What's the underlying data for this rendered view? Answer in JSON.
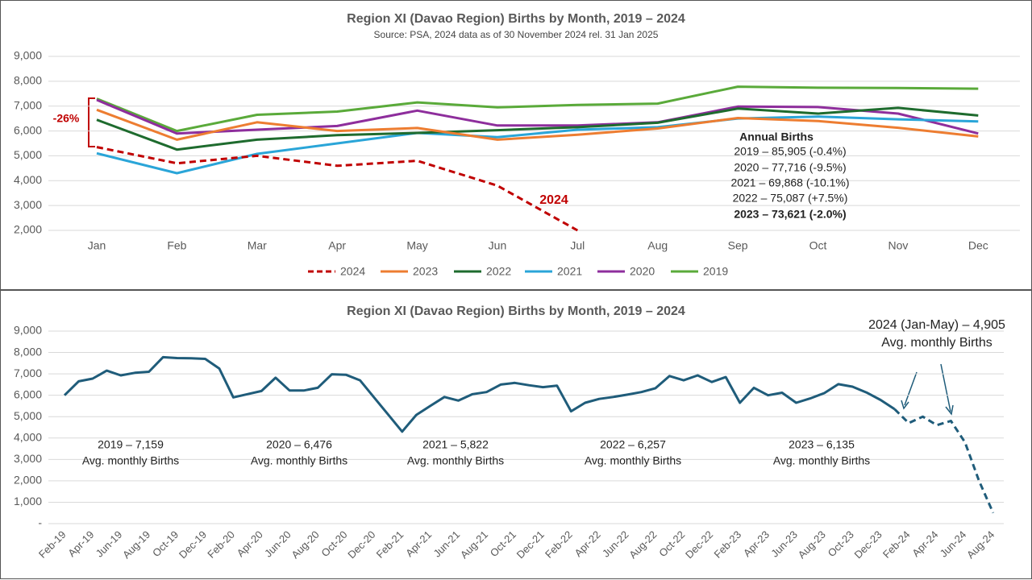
{
  "chart_data": [
    {
      "type": "line",
      "title": "Region XI (Davao Region) Births by Month, 2019 – 2024",
      "subtitle": "Source: PSA, 2024 data as of 30 November 2024 rel. 31 Jan 2025",
      "categories": [
        "Jan",
        "Feb",
        "Mar",
        "Apr",
        "May",
        "Jun",
        "Jul",
        "Aug",
        "Sep",
        "Oct",
        "Nov",
        "Dec"
      ],
      "ylim": [
        2000,
        9000
      ],
      "yticks": [
        {
          "value": 2000,
          "label": "2,000"
        },
        {
          "value": 3000,
          "label": "3,000"
        },
        {
          "value": 4000,
          "label": "4,000"
        },
        {
          "value": 5000,
          "label": "5,000"
        },
        {
          "value": 6000,
          "label": "6,000"
        },
        {
          "value": 7000,
          "label": "7,000"
        },
        {
          "value": 8000,
          "label": "8,000"
        },
        {
          "value": 9000,
          "label": "9,000"
        }
      ],
      "grid": true,
      "legend": "bottom",
      "series": [
        {
          "name": "2024",
          "color": "#c00000",
          "dashed": true,
          "values": [
            5350,
            4700,
            5000,
            4600,
            4800,
            3800,
            2000,
            null,
            null,
            null,
            null,
            null
          ]
        },
        {
          "name": "2023",
          "color": "#ed7d31",
          "values": [
            6850,
            5650,
            6350,
            6000,
            6120,
            5650,
            5850,
            6100,
            6520,
            6400,
            6130,
            5780
          ]
        },
        {
          "name": "2022",
          "color": "#1e6b2e",
          "values": [
            6450,
            5250,
            5650,
            5830,
            5920,
            6030,
            6150,
            6330,
            6900,
            6700,
            6930,
            6620
          ]
        },
        {
          "name": "2021",
          "color": "#2aa5d8",
          "values": [
            5100,
            4300,
            5080,
            5500,
            5920,
            5750,
            6050,
            6150,
            6500,
            6580,
            6470,
            6380
          ]
        },
        {
          "name": "2020",
          "color": "#8e2e9c",
          "values": [
            7250,
            5900,
            6050,
            6200,
            6820,
            6220,
            6220,
            6350,
            6980,
            6960,
            6700,
            5900
          ]
        },
        {
          "name": "2019",
          "color": "#5aaa3a",
          "values": [
            7300,
            6000,
            6650,
            6780,
            7150,
            6950,
            7050,
            7100,
            7780,
            7740,
            7730,
            7700
          ]
        }
      ],
      "annotations": {
        "change": "-26%",
        "label_2024": "2024",
        "annual_title": "Annual Births",
        "annual": [
          "2019 – 85,905 (-0.4%)",
          "2020 – 77,716 (-9.5%)",
          "2021 – 69,868 (-10.1%)",
          "2022 – 75,087 (+7.5%)",
          "2023 – 73,621 (-2.0%)"
        ]
      }
    },
    {
      "type": "line",
      "title": "Region XI (Davao Region) Births by Month, 2019 – 2024",
      "categories": [
        "Feb-19",
        null,
        "Apr-19",
        null,
        "Jun-19",
        null,
        "Aug-19",
        null,
        "Oct-19",
        null,
        "Dec-19",
        null,
        "Feb-20",
        null,
        "Apr-20",
        null,
        "Jun-20",
        null,
        "Aug-20",
        null,
        "Oct-20",
        null,
        "Dec-20",
        null,
        "Feb-21",
        null,
        "Apr-21",
        null,
        "Jun-21",
        null,
        "Aug-21",
        null,
        "Oct-21",
        null,
        "Dec-21",
        null,
        "Feb-22",
        null,
        "Apr-22",
        null,
        "Jun-22",
        null,
        "Aug-22",
        null,
        "Oct-22",
        null,
        "Dec-22",
        null,
        "Feb-23",
        null,
        "Apr-23",
        null,
        "Jun-23",
        null,
        "Aug-23",
        null,
        "Oct-23",
        null,
        "Dec-23",
        null,
        "Feb-24",
        null,
        "Apr-24",
        null,
        "Jun-24",
        null,
        "Aug-24"
      ],
      "ylim": [
        0,
        9000
      ],
      "yticks": [
        {
          "value": 0,
          "label": "-"
        },
        {
          "value": 1000,
          "label": "1,000"
        },
        {
          "value": 2000,
          "label": "2,000"
        },
        {
          "value": 3000,
          "label": "3,000"
        },
        {
          "value": 4000,
          "label": "4,000"
        },
        {
          "value": 5000,
          "label": "5,000"
        },
        {
          "value": 6000,
          "label": "6,000"
        },
        {
          "value": 7000,
          "label": "7,000"
        },
        {
          "value": 8000,
          "label": "8,000"
        },
        {
          "value": 9000,
          "label": "9,000"
        }
      ],
      "grid": true,
      "series": [
        {
          "color": "#1f5c7a",
          "values": [
            6000,
            6650,
            6780,
            7150,
            6930,
            7050,
            7100,
            7780,
            7740,
            7730,
            7700,
            7250,
            5900,
            6050,
            6200,
            6820,
            6220,
            6220,
            6350,
            6980,
            6960,
            6700,
            5900,
            5100,
            4300,
            5080,
            5500,
            5920,
            5750,
            6050,
            6150,
            6500,
            6580,
            6470,
            6380,
            6450,
            5250,
            5650,
            5830,
            5920,
            6030,
            6150,
            6330,
            6900,
            6700,
            6930,
            6620,
            6850,
            5650,
            6350,
            6000,
            6120,
            5650,
            5850,
            6100,
            6520,
            6400,
            6130,
            5780,
            5350,
            null,
            null,
            null,
            null,
            null,
            null,
            null
          ]
        },
        {
          "color": "#1f5c7a",
          "dashed": true,
          "values": [
            null,
            null,
            null,
            null,
            null,
            null,
            null,
            null,
            null,
            null,
            null,
            null,
            null,
            null,
            null,
            null,
            null,
            null,
            null,
            null,
            null,
            null,
            null,
            null,
            null,
            null,
            null,
            null,
            null,
            null,
            null,
            null,
            null,
            null,
            null,
            null,
            null,
            null,
            null,
            null,
            null,
            null,
            null,
            null,
            null,
            null,
            null,
            null,
            null,
            null,
            null,
            null,
            null,
            null,
            null,
            null,
            null,
            null,
            null,
            5350,
            4700,
            5000,
            4600,
            4800,
            3800,
            2000,
            500
          ]
        }
      ],
      "annotations": [
        {
          "text": "2019 – 7,159",
          "sub": "Avg. monthly Births"
        },
        {
          "text": "2020 – 6,476",
          "sub": "Avg. monthly Births"
        },
        {
          "text": "2021 – 5,822",
          "sub": "Avg. monthly Births"
        },
        {
          "text": "2022 – 6,257",
          "sub": "Avg. monthly Births"
        },
        {
          "text": "2023 – 6,135",
          "sub": "Avg. monthly Births"
        },
        {
          "text": "2024 (Jan-May) – 4,905",
          "sub": "Avg. monthly Births"
        }
      ]
    }
  ]
}
